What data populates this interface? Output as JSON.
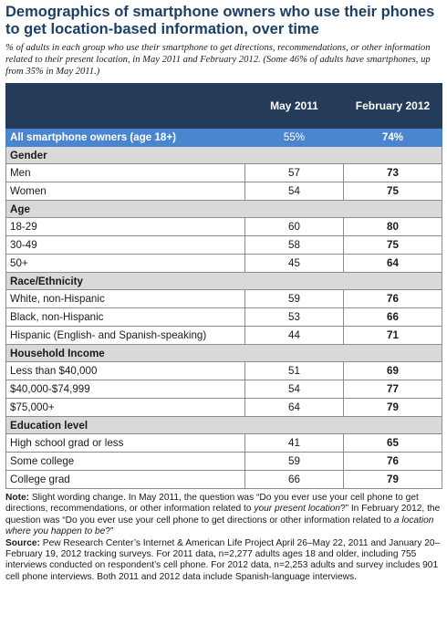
{
  "title": "Demographics of smartphone owners who use their phones to get location-based information, over time",
  "subtitle": "% of adults in each group who use their smartphone to get directions, recommendations, or other information related to their present location, in May 2011 and February 2012. (Some 46% of adults have smartphones, up from 35% in May 2011.)",
  "chart_data": {
    "type": "table",
    "columns": [
      "May 2011",
      "February 2012"
    ],
    "total": {
      "label": "All smartphone owners (age 18+)",
      "may2011": "55%",
      "feb2012": "74%"
    },
    "sections": [
      {
        "heading": "Gender",
        "rows": [
          {
            "label": "Men",
            "may2011": "57",
            "feb2012": "73"
          },
          {
            "label": "Women",
            "may2011": "54",
            "feb2012": "75"
          }
        ]
      },
      {
        "heading": "Age",
        "rows": [
          {
            "label": "18-29",
            "may2011": "60",
            "feb2012": "80"
          },
          {
            "label": "30-49",
            "may2011": "58",
            "feb2012": "75"
          },
          {
            "label": "50+",
            "may2011": "45",
            "feb2012": "64"
          }
        ]
      },
      {
        "heading": "Race/Ethnicity",
        "rows": [
          {
            "label": "White, non-Hispanic",
            "may2011": "59",
            "feb2012": "76"
          },
          {
            "label": "Black, non-Hispanic",
            "may2011": "53",
            "feb2012": "66"
          },
          {
            "label": "Hispanic (English- and Spanish-speaking)",
            "may2011": "44",
            "feb2012": "71"
          }
        ]
      },
      {
        "heading": "Household Income",
        "rows": [
          {
            "label": "Less than $40,000",
            "may2011": "51",
            "feb2012": "69"
          },
          {
            "label": "$40,000-$74,999",
            "may2011": "54",
            "feb2012": "77"
          },
          {
            "label": "$75,000+",
            "may2011": "64",
            "feb2012": "79"
          }
        ]
      },
      {
        "heading": "Education level",
        "rows": [
          {
            "label": "High school grad or less",
            "may2011": "41",
            "feb2012": "65"
          },
          {
            "label": "Some college",
            "may2011": "59",
            "feb2012": "76"
          },
          {
            "label": "College grad",
            "may2011": "66",
            "feb2012": "79"
          }
        ]
      }
    ]
  },
  "note": {
    "label": "Note:",
    "text_1": " Slight wording change. In May 2011, the question was “Do you ever use your cell phone to get directions, recommendations, or other information related to ",
    "italic_1": "your present location",
    "text_2": "?” In February 2012, the question was “Do you ever use your cell phone to get directions or other information related to ",
    "italic_2": "a location where you happen to be",
    "text_3": "?”"
  },
  "source": {
    "label": "Source:",
    "text": " Pew Research Center’s Internet & American Life Project April 26–May 22, 2011 and January 20–February 19, 2012 tracking surveys. For 2011 data, n=2,277 adults ages 18 and older, including 755 interviews conducted on respondent’s cell phone. For 2012 data, n=2,253 adults and survey includes 901 cell phone interviews. Both 2011 and 2012 data include Spanish-language interviews."
  },
  "colors": {
    "header_bg": "#243b5a",
    "total_bg": "#4a86d0",
    "section_bg": "#d9d9d9",
    "title": "#1c3f66"
  }
}
